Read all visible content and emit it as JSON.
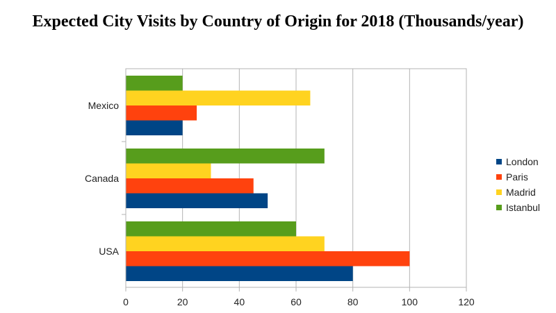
{
  "chart_data": {
    "type": "bar",
    "orientation": "horizontal",
    "title": "Expected City Visits by Country of Origin for 2018 (Thousands/year)",
    "categories": [
      "Mexico",
      "Canada",
      "USA"
    ],
    "series": [
      {
        "name": "London",
        "color": "#004586",
        "values": [
          20,
          50,
          80
        ]
      },
      {
        "name": "Paris",
        "color": "#ff420e",
        "values": [
          25,
          45,
          100
        ]
      },
      {
        "name": "Madrid",
        "color": "#ffd320",
        "values": [
          65,
          30,
          70
        ]
      },
      {
        "name": "Istanbul",
        "color": "#579d1c",
        "values": [
          20,
          70,
          60
        ]
      }
    ],
    "xlim": [
      0,
      120
    ],
    "xticks": [
      0,
      20,
      40,
      60,
      80,
      100,
      120
    ],
    "grid": true,
    "legend_position": "right"
  }
}
